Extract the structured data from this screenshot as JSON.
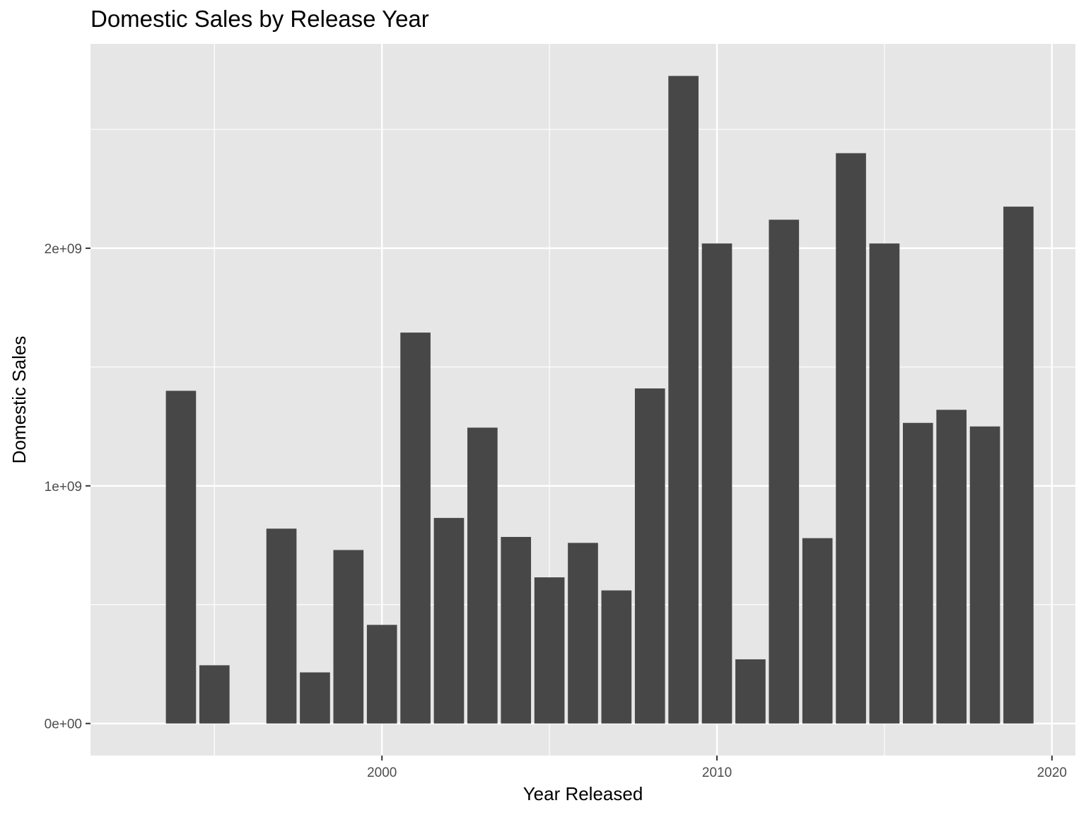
{
  "chart_data": {
    "type": "bar",
    "title": "Domestic Sales by Release Year",
    "xlabel": "Year Released",
    "ylabel": "Domestic Sales",
    "x": [
      1994,
      1995,
      1997,
      1998,
      1999,
      2000,
      2001,
      2002,
      2003,
      2004,
      2005,
      2006,
      2007,
      2008,
      2009,
      2010,
      2011,
      2012,
      2013,
      2014,
      2015,
      2016,
      2017,
      2018,
      2019
    ],
    "values": [
      1400000000,
      245000000,
      820000000,
      215000000,
      730000000,
      415000000,
      1645000000,
      865000000,
      1245000000,
      785000000,
      615000000,
      760000000,
      560000000,
      1410000000,
      2725000000,
      2020000000,
      270000000,
      2120000000,
      780000000,
      2400000000,
      2020000000,
      1265000000,
      1320000000,
      1250000000,
      2175000000
    ],
    "xlim": [
      1991.3,
      2020.7
    ],
    "ylim": [
      -135000000,
      2860000000
    ],
    "x_ticks": [
      {
        "value": 2000,
        "label": "2000"
      },
      {
        "value": 2010,
        "label": "2010"
      },
      {
        "value": 2020,
        "label": "2020"
      }
    ],
    "x_minor_ticks": [
      1995,
      2005,
      2015
    ],
    "y_ticks": [
      {
        "value": 0,
        "label": "0e+00"
      },
      {
        "value": 1000000000,
        "label": "1e+09"
      },
      {
        "value": 2000000000,
        "label": "2e+09"
      }
    ],
    "y_minor_ticks": [
      500000000,
      1500000000,
      2500000000
    ],
    "grid": true,
    "colors": {
      "bar": "#474747",
      "panel": "#e6e6e6",
      "grid": "#ffffff",
      "tick": "#333333"
    }
  }
}
